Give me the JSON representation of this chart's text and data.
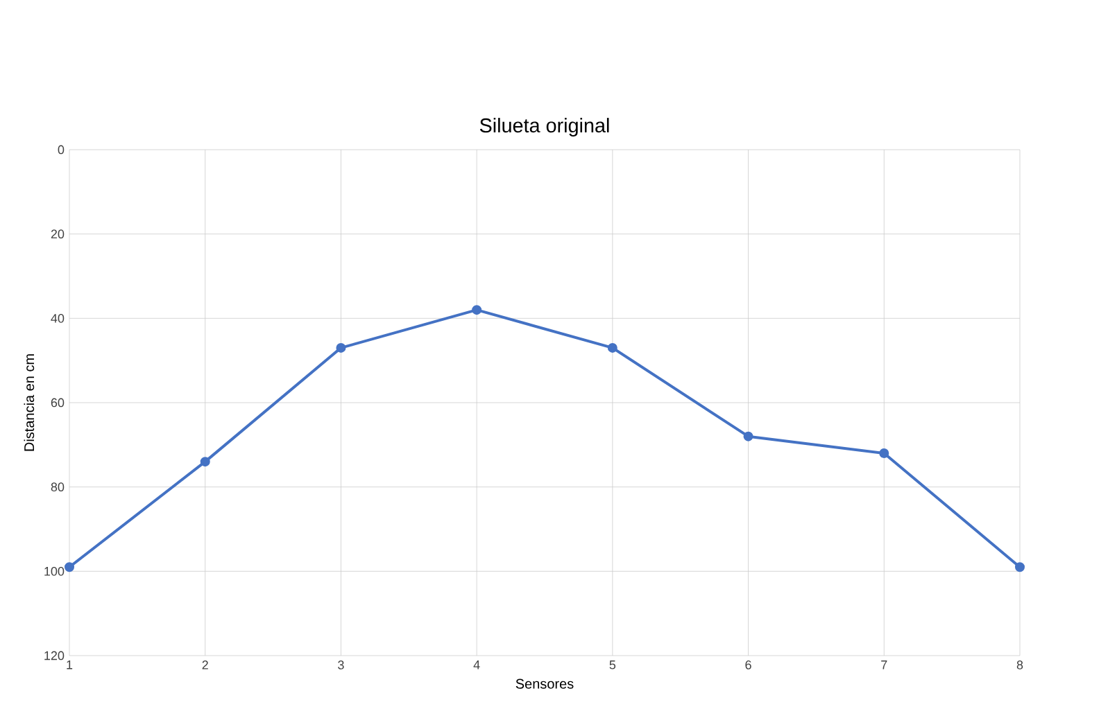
{
  "chart_data": {
    "type": "line",
    "title": "Silueta original",
    "xlabel": "Sensores",
    "ylabel": "Distancia en cm",
    "x": [
      1,
      2,
      3,
      4,
      5,
      6,
      7,
      8
    ],
    "series": [
      {
        "color": "#4472c4",
        "values": [
          99,
          74,
          47,
          38,
          47,
          68,
          72,
          99
        ]
      }
    ],
    "xlim": [
      1,
      8
    ],
    "xticks": [
      1,
      2,
      3,
      4,
      5,
      6,
      7,
      8
    ],
    "ylim": [
      120,
      0
    ],
    "yticks": [
      0,
      20,
      40,
      60,
      80,
      100,
      120
    ],
    "grid": true,
    "marker": "circle",
    "line_style": "solid"
  }
}
